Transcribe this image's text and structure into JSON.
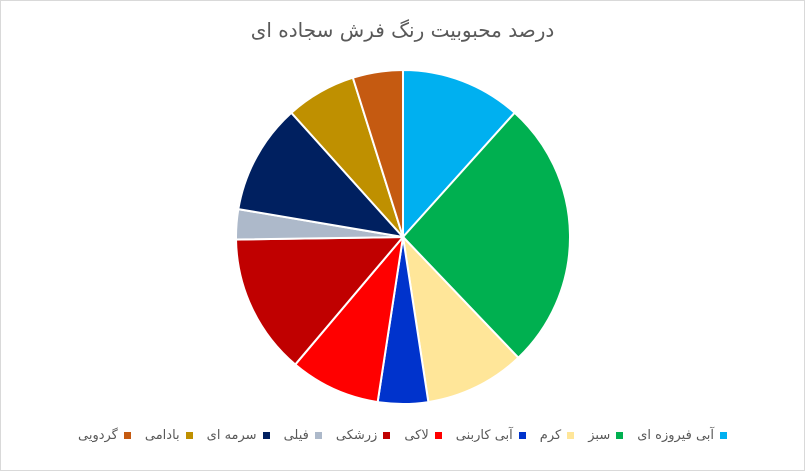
{
  "chart_data": {
    "type": "pie",
    "title": "درصد محبوبیت رنگ فرش سجاده ای",
    "categories": [
      "آبی فیروزه ای",
      "سبز",
      "کرم",
      "آبی کاربنی",
      "لاکی",
      "زرشکی",
      "فیلی",
      "سرمه ای",
      "بادامی",
      "گردویی"
    ],
    "values": [
      12,
      27,
      10,
      5,
      9,
      14,
      3,
      11,
      7,
      5
    ],
    "unit": "%",
    "colors": [
      "#00B0F0",
      "#00B050",
      "#FFE699",
      "#0033CC",
      "#FF0000",
      "#C00000",
      "#ADB9CA",
      "#002060",
      "#BF9000",
      "#C55A11"
    ],
    "legend": "bottom"
  }
}
